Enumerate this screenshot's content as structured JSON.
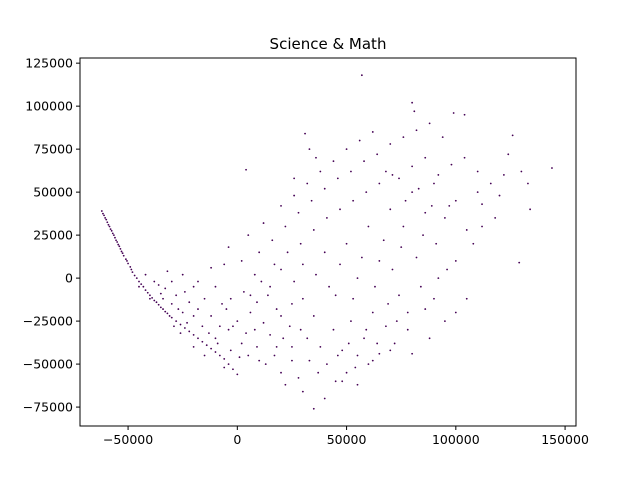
{
  "chart_data": {
    "type": "scatter",
    "title": "Science & Math",
    "xlabel": "",
    "ylabel": "",
    "xlim": [
      -72000,
      155000
    ],
    "ylim": [
      -86000,
      128000
    ],
    "x_ticks": [
      -50000,
      0,
      50000,
      100000,
      150000
    ],
    "x_tick_labels": [
      "−50000",
      "0",
      "50000",
      "100000",
      "150000"
    ],
    "y_ticks": [
      -75000,
      -50000,
      -25000,
      0,
      25000,
      50000,
      75000,
      100000,
      125000
    ],
    "y_tick_labels": [
      "−75000",
      "−50000",
      "−25000",
      "0",
      "25000",
      "50000",
      "75000",
      "100000",
      "125000"
    ],
    "grid": false,
    "marker_color": "#440154",
    "series": [
      {
        "points": [
          [
            -62000,
            39000
          ],
          [
            -61500,
            37500
          ],
          [
            -61000,
            36500
          ],
          [
            -60500,
            35000
          ],
          [
            -60000,
            34000
          ],
          [
            -59500,
            32500
          ],
          [
            -59000,
            31000
          ],
          [
            -58500,
            30000
          ],
          [
            -58000,
            28500
          ],
          [
            -57500,
            27500
          ],
          [
            -57000,
            26000
          ],
          [
            -56500,
            25000
          ],
          [
            -56000,
            23500
          ],
          [
            -55500,
            22000
          ],
          [
            -55000,
            21000
          ],
          [
            -54500,
            19500
          ],
          [
            -54000,
            18500
          ],
          [
            -53500,
            17000
          ],
          [
            -53000,
            15500
          ],
          [
            -52500,
            14500
          ],
          [
            -52000,
            13000
          ],
          [
            -51000,
            11000
          ],
          [
            -50500,
            10000
          ],
          [
            -50000,
            8500
          ],
          [
            -49000,
            6500
          ],
          [
            -48500,
            5000
          ],
          [
            -48000,
            3500
          ],
          [
            -47000,
            1500
          ],
          [
            -46000,
            0
          ],
          [
            -45000,
            -2000
          ],
          [
            -44000,
            -3500
          ],
          [
            -43000,
            -5000
          ],
          [
            -42000,
            -7000
          ],
          [
            -41000,
            -8500
          ],
          [
            -40000,
            -10000
          ],
          [
            -39000,
            -11500
          ],
          [
            -38000,
            -13000
          ],
          [
            -37000,
            -14000
          ],
          [
            -36000,
            -15500
          ],
          [
            -35000,
            -17000
          ],
          [
            -34000,
            -18000
          ],
          [
            -33000,
            -19500
          ],
          [
            -32000,
            -20500
          ],
          [
            -31000,
            -22000
          ],
          [
            -30000,
            -23000
          ],
          [
            -28000,
            -25000
          ],
          [
            -26000,
            -27000
          ],
          [
            -24000,
            -29000
          ],
          [
            -22000,
            -31000
          ],
          [
            -20000,
            -33000
          ],
          [
            -18000,
            -35000
          ],
          [
            -16000,
            -37000
          ],
          [
            -14000,
            -39000
          ],
          [
            -12000,
            -41000
          ],
          [
            -10000,
            -43000
          ],
          [
            -8000,
            -45000
          ],
          [
            -6000,
            -47000
          ],
          [
            -4000,
            -50000
          ],
          [
            -2000,
            -53000
          ],
          [
            0,
            -56000
          ],
          [
            -45000,
            -5000
          ],
          [
            -40000,
            -12000
          ],
          [
            -35000,
            -9000
          ],
          [
            -30000,
            -15000
          ],
          [
            -25000,
            -20000
          ],
          [
            -38000,
            -2000
          ],
          [
            -33000,
            -6000
          ],
          [
            -28000,
            -10000
          ],
          [
            -22000,
            -14000
          ],
          [
            -18000,
            -18000
          ],
          [
            -42000,
            2000
          ],
          [
            -36000,
            -4000
          ],
          [
            -30000,
            -2000
          ],
          [
            -24000,
            -8000
          ],
          [
            -20000,
            -5000
          ],
          [
            -15000,
            -12000
          ],
          [
            -12000,
            -22000
          ],
          [
            -8000,
            -28000
          ],
          [
            -5000,
            -18000
          ],
          [
            0,
            -25000
          ],
          [
            -26000,
            -32000
          ],
          [
            -20000,
            -40000
          ],
          [
            -15000,
            -45000
          ],
          [
            -10000,
            -35000
          ],
          [
            -6000,
            -52000
          ],
          [
            -3000,
            -42000
          ],
          [
            2000,
            -38000
          ],
          [
            5000,
            -45000
          ],
          [
            8000,
            -30000
          ],
          [
            10000,
            -48000
          ],
          [
            -32000,
            4000
          ],
          [
            -25000,
            2000
          ],
          [
            -18000,
            -2000
          ],
          [
            -12000,
            6000
          ],
          [
            -6000,
            8000
          ],
          [
            -3000,
            -12000
          ],
          [
            3000,
            -8000
          ],
          [
            6000,
            -20000
          ],
          [
            9000,
            -14000
          ],
          [
            12000,
            -26000
          ],
          [
            15000,
            -33000
          ],
          [
            18000,
            -40000
          ],
          [
            20000,
            -55000
          ],
          [
            22000,
            -62000
          ],
          [
            25000,
            -48000
          ],
          [
            28000,
            -58000
          ],
          [
            30000,
            -66000
          ],
          [
            35000,
            -76000
          ],
          [
            40000,
            -70000
          ],
          [
            45000,
            -60000
          ],
          [
            50000,
            -55000
          ],
          [
            55000,
            -62000
          ],
          [
            60000,
            -50000
          ],
          [
            65000,
            -44000
          ],
          [
            72000,
            -38000
          ],
          [
            80000,
            -44000
          ],
          [
            88000,
            -35000
          ],
          [
            95000,
            -25000
          ],
          [
            100000,
            -20000
          ],
          [
            105000,
            -12000
          ],
          [
            15000,
            -5000
          ],
          [
            20000,
            5000
          ],
          [
            25000,
            -15000
          ],
          [
            30000,
            8000
          ],
          [
            35000,
            -22000
          ],
          [
            40000,
            15000
          ],
          [
            45000,
            -10000
          ],
          [
            50000,
            20000
          ],
          [
            55000,
            0
          ],
          [
            60000,
            30000
          ],
          [
            65000,
            10000
          ],
          [
            70000,
            40000
          ],
          [
            75000,
            18000
          ],
          [
            80000,
            50000
          ],
          [
            85000,
            25000
          ],
          [
            90000,
            55000
          ],
          [
            95000,
            35000
          ],
          [
            100000,
            45000
          ],
          [
            105000,
            28000
          ],
          [
            110000,
            50000
          ],
          [
            18000,
            -18000
          ],
          [
            24000,
            -28000
          ],
          [
            32000,
            -35000
          ],
          [
            38000,
            -40000
          ],
          [
            44000,
            -30000
          ],
          [
            48000,
            -42000
          ],
          [
            52000,
            -25000
          ],
          [
            58000,
            -35000
          ],
          [
            62000,
            -20000
          ],
          [
            68000,
            -28000
          ],
          [
            74000,
            -10000
          ],
          [
            78000,
            -20000
          ],
          [
            84000,
            -5000
          ],
          [
            90000,
            -12000
          ],
          [
            96000,
            5000
          ],
          [
            10000,
            15000
          ],
          [
            16000,
            22000
          ],
          [
            22000,
            30000
          ],
          [
            28000,
            38000
          ],
          [
            34000,
            45000
          ],
          [
            40000,
            52000
          ],
          [
            46000,
            58000
          ],
          [
            52000,
            62000
          ],
          [
            58000,
            68000
          ],
          [
            64000,
            72000
          ],
          [
            70000,
            78000
          ],
          [
            76000,
            82000
          ],
          [
            82000,
            86000
          ],
          [
            88000,
            90000
          ],
          [
            94000,
            82000
          ],
          [
            5000,
            25000
          ],
          [
            12000,
            32000
          ],
          [
            20000,
            42000
          ],
          [
            26000,
            48000
          ],
          [
            32000,
            55000
          ],
          [
            38000,
            62000
          ],
          [
            44000,
            68000
          ],
          [
            50000,
            75000
          ],
          [
            56000,
            80000
          ],
          [
            62000,
            85000
          ],
          [
            68000,
            62000
          ],
          [
            74000,
            58000
          ],
          [
            80000,
            65000
          ],
          [
            86000,
            70000
          ],
          [
            92000,
            60000
          ],
          [
            98000,
            66000
          ],
          [
            104000,
            70000
          ],
          [
            110000,
            62000
          ],
          [
            116000,
            55000
          ],
          [
            122000,
            60000
          ],
          [
            80000,
            102000
          ],
          [
            81000,
            97000
          ],
          [
            57000,
            118000
          ],
          [
            99000,
            96000
          ],
          [
            104000,
            95000
          ],
          [
            124000,
            72000
          ],
          [
            126000,
            83000
          ],
          [
            130000,
            62000
          ],
          [
            133000,
            55000
          ],
          [
            144000,
            64000
          ],
          [
            134000,
            40000
          ],
          [
            129000,
            9000
          ],
          [
            112000,
            43000
          ],
          [
            118000,
            35000
          ],
          [
            120000,
            48000
          ],
          [
            4000,
            63000
          ],
          [
            31000,
            84000
          ],
          [
            33000,
            75000
          ],
          [
            36000,
            70000
          ],
          [
            26000,
            58000
          ],
          [
            -4000,
            18000
          ],
          [
            2000,
            10000
          ],
          [
            8000,
            2000
          ],
          [
            14000,
            -10000
          ],
          [
            20000,
            -22000
          ],
          [
            26000,
            -2000
          ],
          [
            30000,
            -12000
          ],
          [
            36000,
            2000
          ],
          [
            42000,
            -5000
          ],
          [
            47000,
            8000
          ],
          [
            53000,
            -12000
          ],
          [
            57000,
            12000
          ],
          [
            63000,
            -5000
          ],
          [
            67000,
            22000
          ],
          [
            71000,
            5000
          ],
          [
            76000,
            30000
          ],
          [
            82000,
            12000
          ],
          [
            86000,
            38000
          ],
          [
            91000,
            20000
          ],
          [
            97000,
            42000
          ],
          [
            -10000,
            -5000
          ],
          [
            -7000,
            -15000
          ],
          [
            -2000,
            -28000
          ],
          [
            4000,
            -32000
          ],
          [
            9000,
            -40000
          ],
          [
            13000,
            -50000
          ],
          [
            17000,
            -45000
          ],
          [
            21000,
            -35000
          ],
          [
            25000,
            -40000
          ],
          [
            29000,
            -30000
          ],
          [
            33000,
            -48000
          ],
          [
            37000,
            -55000
          ],
          [
            41000,
            -50000
          ],
          [
            46000,
            -45000
          ],
          [
            51000,
            -38000
          ],
          [
            55000,
            -45000
          ],
          [
            59000,
            -30000
          ],
          [
            64000,
            -38000
          ],
          [
            69000,
            -15000
          ],
          [
            73000,
            -25000
          ],
          [
            6000,
            -10000
          ],
          [
            11000,
            -2000
          ],
          [
            17000,
            8000
          ],
          [
            23000,
            15000
          ],
          [
            29000,
            20000
          ],
          [
            35000,
            28000
          ],
          [
            41000,
            35000
          ],
          [
            47000,
            40000
          ],
          [
            53000,
            45000
          ],
          [
            59000,
            50000
          ],
          [
            65000,
            55000
          ],
          [
            71000,
            60000
          ],
          [
            77000,
            45000
          ],
          [
            83000,
            52000
          ],
          [
            89000,
            42000
          ],
          [
            -16000,
            -28000
          ],
          [
            -13000,
            -32000
          ],
          [
            -9000,
            -38000
          ],
          [
            -4000,
            -30000
          ],
          [
            1000,
            -46000
          ],
          [
            -20000,
            -22000
          ],
          [
            -23000,
            -26000
          ],
          [
            -27000,
            -18000
          ],
          [
            -29000,
            -28000
          ],
          [
            -34000,
            -12000
          ],
          [
            108000,
            20000
          ],
          [
            112000,
            30000
          ],
          [
            100000,
            10000
          ],
          [
            92000,
            0
          ],
          [
            86000,
            -18000
          ],
          [
            78000,
            -30000
          ],
          [
            70000,
            -42000
          ],
          [
            62000,
            -48000
          ],
          [
            54000,
            -52000
          ],
          [
            48000,
            -60000
          ]
        ]
      }
    ]
  }
}
